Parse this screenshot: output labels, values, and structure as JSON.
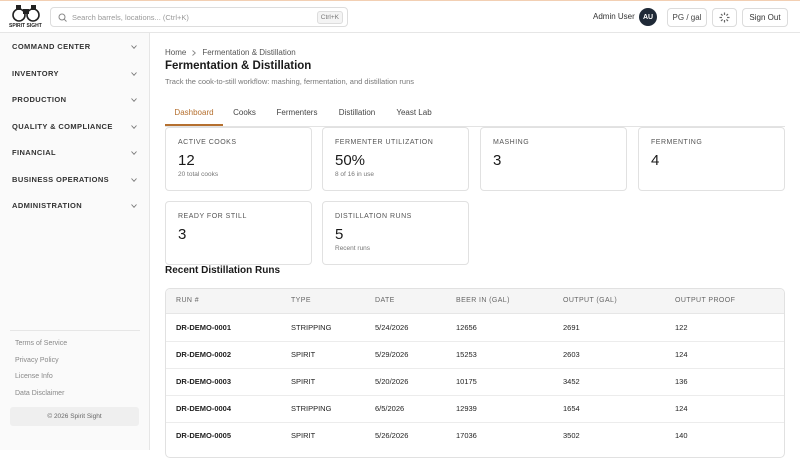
{
  "header": {
    "logo_text": "SPIRIT SIGHT",
    "search_placeholder": "Search barrels, locations... (Ctrl+K)",
    "search_shortcut": "Ctrl+K",
    "user_name": "Admin User",
    "user_initials": "AU",
    "units_button": "PG / gal",
    "sign_out": "Sign Out"
  },
  "sidebar": {
    "nav": [
      "COMMAND CENTER",
      "INVENTORY",
      "PRODUCTION",
      "QUALITY & COMPLIANCE",
      "FINANCIAL",
      "BUSINESS OPERATIONS",
      "ADMINISTRATION"
    ],
    "footer_links": [
      "Terms of Service",
      "Privacy Policy",
      "License Info",
      "Data Disclaimer"
    ],
    "copyright": "© 2026 Spirit Sight"
  },
  "breadcrumb": [
    "Home",
    "Fermentation & Distillation"
  ],
  "page": {
    "title": "Fermentation & Distillation",
    "subtitle": "Track the cook-to-still workflow: mashing, fermentation, and distillation runs"
  },
  "tabs": {
    "items": [
      "Dashboard",
      "Cooks",
      "Fermenters",
      "Distillation",
      "Yeast Lab"
    ],
    "active": 0
  },
  "cards": [
    {
      "label": "ACTIVE COOKS",
      "value": 12,
      "note": "20 total cooks"
    },
    {
      "label": "FERMENTER UTILIZATION",
      "value": "50%",
      "note": "8 of 16 in use"
    },
    {
      "label": "MASHING",
      "value": 3
    },
    {
      "label": "FERMENTING",
      "value": 4
    },
    {
      "label": "READY FOR STILL",
      "value": 3
    },
    {
      "label": "DISTILLATION RUNS",
      "value": 5,
      "note": "Recent runs"
    }
  ],
  "section_title": "Recent Distillation Runs",
  "table": {
    "columns": [
      "RUN #",
      "TYPE",
      "DATE",
      "BEER IN (GAL)",
      "OUTPUT (GAL)",
      "OUTPUT PROOF"
    ],
    "rows": [
      [
        "DR-DEMO-0001",
        "STRIPPING",
        "5/24/2026",
        12656,
        2691,
        122
      ],
      [
        "DR-DEMO-0002",
        "SPIRIT",
        "5/29/2026",
        15253,
        2603,
        124
      ],
      [
        "DR-DEMO-0003",
        "SPIRIT",
        "5/20/2026",
        10175,
        3452,
        136
      ],
      [
        "DR-DEMO-0004",
        "STRIPPING",
        "6/5/2026",
        12939,
        1654,
        124
      ],
      [
        "DR-DEMO-0005",
        "SPIRIT",
        "5/26/2026",
        17036,
        3502,
        140
      ]
    ]
  }
}
